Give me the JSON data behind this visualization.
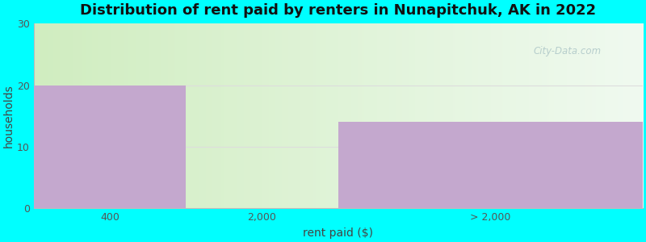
{
  "title": "Distribution of rent paid by renters in Nunapitchuk, AK in 2022",
  "xlabel": "rent paid ($)",
  "ylabel": "households",
  "background_color": "#00FFFF",
  "bar_categories": [
    "400",
    "2,000",
    "> 2,000"
  ],
  "bar_values": [
    20,
    0,
    14
  ],
  "bar_color": "#C4A8CE",
  "ylim": [
    0,
    30
  ],
  "yticks": [
    0,
    10,
    20,
    30
  ],
  "grid_color": "#dddddd",
  "title_fontsize": 13,
  "axis_label_fontsize": 10,
  "tick_fontsize": 9,
  "grad_left_color": "#d0edc0",
  "grad_right_color": "#f0faf0",
  "watermark": "City-Data.com"
}
